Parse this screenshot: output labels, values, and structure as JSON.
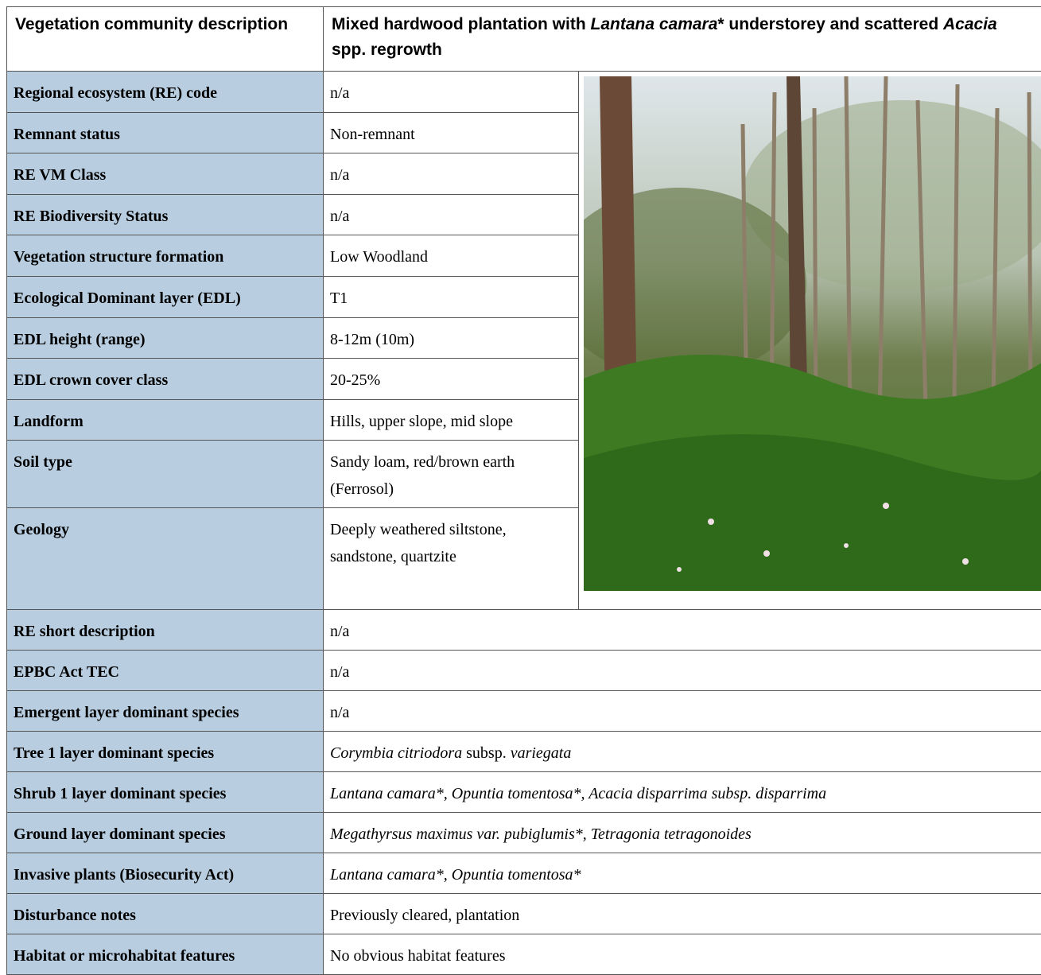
{
  "header": {
    "label": "Vegetation community description",
    "description": [
      {
        "text": "Mixed hardwood plantation with ",
        "italic": false
      },
      {
        "text": "Lantana camara",
        "italic": true
      },
      {
        "text": "* understorey and scattered ",
        "italic": false
      },
      {
        "text": "Acacia",
        "italic": true
      },
      {
        "text": " spp. regrowth",
        "italic": false
      }
    ]
  },
  "table": {
    "upper_rows": [
      {
        "label": "Regional ecosystem (RE) code",
        "value": [
          {
            "text": "n/a",
            "italic": false
          }
        ]
      },
      {
        "label": "Remnant status",
        "value": [
          {
            "text": "Non-remnant",
            "italic": false
          }
        ]
      },
      {
        "label": "RE VM Class",
        "value": [
          {
            "text": "n/a",
            "italic": false
          }
        ]
      },
      {
        "label": "RE Biodiversity Status",
        "value": [
          {
            "text": "n/a",
            "italic": false
          }
        ]
      },
      {
        "label": "Vegetation structure formation",
        "value": [
          {
            "text": "Low Woodland",
            "italic": false
          }
        ]
      },
      {
        "label": "Ecological Dominant layer (EDL)",
        "value": [
          {
            "text": "T1",
            "italic": false
          }
        ]
      },
      {
        "label": "EDL height (range)",
        "value": [
          {
            "text": "8-12m (10m)",
            "italic": false
          }
        ]
      },
      {
        "label": "EDL crown cover class",
        "value": [
          {
            "text": "20-25%",
            "italic": false
          }
        ]
      },
      {
        "label": "Landform",
        "value": [
          {
            "text": "Hills, upper slope, mid slope",
            "italic": false
          }
        ]
      },
      {
        "label": "Soil type",
        "value": [
          {
            "text": "Sandy loam, red/brown earth (Ferrosol)",
            "italic": false
          }
        ]
      },
      {
        "label": "Geology",
        "value": [
          {
            "text": "Deeply weathered siltstone, sandstone, quartzite",
            "italic": false
          }
        ]
      }
    ],
    "lower_rows": [
      {
        "label": "RE short description",
        "value": [
          {
            "text": "n/a",
            "italic": false
          }
        ]
      },
      {
        "label": "EPBC Act TEC",
        "value": [
          {
            "text": "n/a",
            "italic": false
          }
        ]
      },
      {
        "label": "Emergent layer dominant species",
        "value": [
          {
            "text": "n/a",
            "italic": false
          }
        ]
      },
      {
        "label": "Tree 1 layer dominant species",
        "value": [
          {
            "text": "Corymbia citriodora",
            "italic": true
          },
          {
            "text": " subsp. ",
            "italic": false
          },
          {
            "text": "variegata",
            "italic": true
          }
        ]
      },
      {
        "label": "Shrub 1 layer dominant species",
        "value": [
          {
            "text": "Lantana camara*, Opuntia tomentosa*, Acacia disparrima subsp. disparrima",
            "italic": true
          }
        ]
      },
      {
        "label": "Ground layer dominant species",
        "value": [
          {
            "text": "Megathyrsus maximus var. pubiglumis*, Tetragonia tetragonoides",
            "italic": true
          }
        ]
      },
      {
        "label": "Invasive plants (Biosecurity Act)",
        "value": [
          {
            "text": "Lantana camara*, Opuntia tomentosa*",
            "italic": true
          }
        ]
      },
      {
        "label": "Disturbance notes",
        "value": [
          {
            "text": "Previously cleared, plantation",
            "italic": false
          }
        ]
      },
      {
        "label": "Habitat or microhabitat features",
        "value": [
          {
            "text": "No obvious habitat features",
            "italic": false
          }
        ]
      }
    ]
  }
}
